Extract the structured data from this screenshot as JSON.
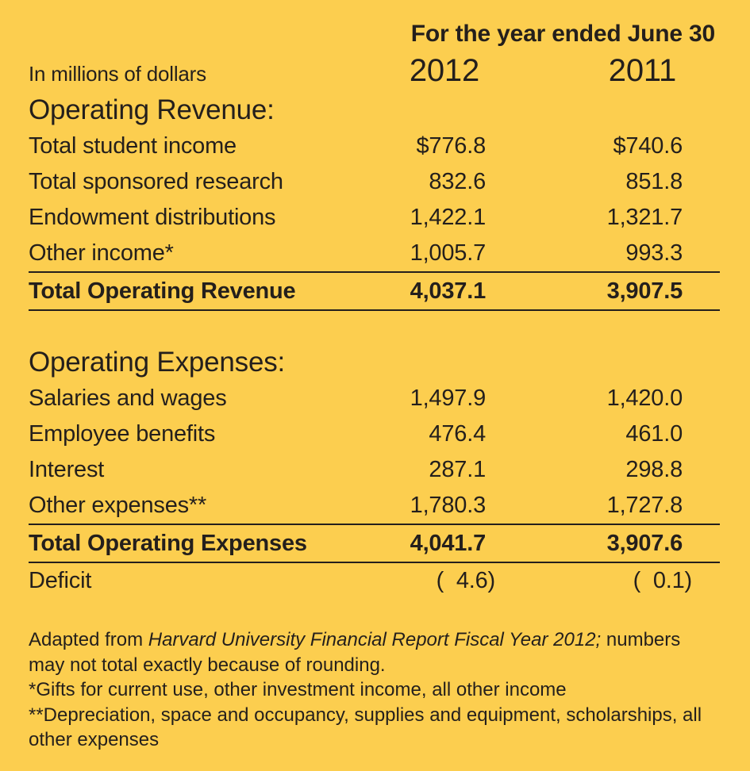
{
  "colors": {
    "background": "#FCCE4F",
    "text": "#241F1C"
  },
  "header": {
    "period": "For the year ended June 30",
    "units": "In millions of dollars",
    "col_2012": "2012",
    "col_2011": "2011"
  },
  "revenue": {
    "title": "Operating Revenue:",
    "rows": [
      {
        "label": "Total student income",
        "v2012": "$776.8",
        "v2011": "$740.6"
      },
      {
        "label": "Total sponsored research",
        "v2012": "832.6",
        "v2011": "851.8"
      },
      {
        "label": "Endowment distributions",
        "v2012": "1,422.1",
        "v2011": "1,321.7"
      },
      {
        "label": "Other income*",
        "v2012": "1,005.7",
        "v2011": "993.3"
      }
    ],
    "total": {
      "label": "Total Operating Revenue",
      "v2012": "4,037.1",
      "v2011": "3,907.5"
    }
  },
  "expenses": {
    "title": "Operating Expenses:",
    "rows": [
      {
        "label": "Salaries and wages",
        "v2012": "1,497.9",
        "v2011": "1,420.0"
      },
      {
        "label": "Employee benefits",
        "v2012": "476.4",
        "v2011": "461.0"
      },
      {
        "label": "Interest",
        "v2012": "287.1",
        "v2011": "298.8"
      },
      {
        "label": "Other expenses**",
        "v2012": "1,780.3",
        "v2011": "1,727.8"
      }
    ],
    "total": {
      "label": "Total Operating Expenses",
      "v2012": "4,041.7",
      "v2011": "3,907.6"
    }
  },
  "deficit": {
    "label": "Deficit",
    "v2012": "(  4.6)",
    "v2011": "(  0.1)"
  },
  "footnotes": {
    "source_prefix": "Adapted from ",
    "source_title": "Harvard University Financial Report Fiscal Year 2012;",
    "source_suffix": " numbers may not total exactly because of rounding.",
    "note_single_star": "*Gifts for current use, other investment income, all other income",
    "note_double_star": "**Depreciation, space and occupancy, supplies and equipment, scholarships, all other expenses"
  },
  "chart_data": {
    "type": "table",
    "title": "For the year ended June 30",
    "units": "millions of dollars",
    "columns": [
      "2012",
      "2011"
    ],
    "sections": [
      {
        "name": "Operating Revenue",
        "rows": [
          [
            "Total student income",
            776.8,
            740.6
          ],
          [
            "Total sponsored research",
            832.6,
            851.8
          ],
          [
            "Endowment distributions",
            1422.1,
            1321.7
          ],
          [
            "Other income*",
            1005.7,
            993.3
          ]
        ],
        "total": [
          "Total Operating Revenue",
          4037.1,
          3907.5
        ]
      },
      {
        "name": "Operating Expenses",
        "rows": [
          [
            "Salaries and wages",
            1497.9,
            1420.0
          ],
          [
            "Employee benefits",
            476.4,
            461.0
          ],
          [
            "Interest",
            287.1,
            298.8
          ],
          [
            "Other expenses**",
            1780.3,
            1727.8
          ]
        ],
        "total": [
          "Total Operating Expenses",
          4041.7,
          3907.6
        ]
      }
    ],
    "deficit": [
      "Deficit",
      -4.6,
      -0.1
    ]
  }
}
